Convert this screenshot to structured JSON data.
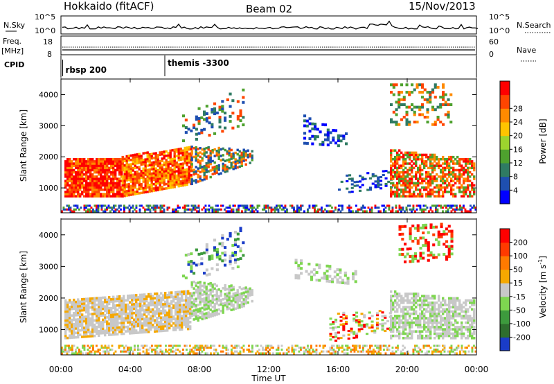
{
  "header": {
    "station": "Hokkaido (fitACF)",
    "beam": "Beam 02",
    "date": "15/Nov/2013"
  },
  "strip": {
    "nsky_label": "N.Sky",
    "nsearch_label": "N.Search",
    "freq_label": "Freq.",
    "freq_unit": "[MHz]",
    "nave_label": "Nave",
    "cpid_label": "CPID",
    "left_ticks_top": [
      "10^5",
      "10^0"
    ],
    "right_ticks_top": [
      "10^5",
      "10^0"
    ],
    "left_ticks_freq": [
      "18",
      "8"
    ],
    "right_ticks_nave": [
      "60",
      "0"
    ],
    "cpid_modes": [
      {
        "label": "rbsp 200",
        "start_hour": 0.1
      },
      {
        "label": "themis -3300",
        "start_hour": 6.0
      }
    ]
  },
  "chart_data": [
    {
      "type": "heatmap",
      "name": "power",
      "ylabel": "Slant Range [km]",
      "xlabel": "",
      "xlim": [
        0,
        24
      ],
      "ylim": [
        200,
        4500
      ],
      "yticks": [
        "1000",
        "2000",
        "3000",
        "4000"
      ],
      "colorbar_label": "Power [dB]",
      "colorbar_ticks": [
        "4",
        "8",
        "12",
        "16",
        "20",
        "24",
        "28"
      ],
      "colorbar_colors": [
        "#0000ff",
        "#1e4fb0",
        "#2f7b63",
        "#4ea12e",
        "#9dd42e",
        "#ffc400",
        "#ff8a00",
        "#ff4500",
        "#ff0000"
      ]
    },
    {
      "type": "heatmap",
      "name": "velocity",
      "ylabel": "Slant Range [km]",
      "xlabel": "Time UT",
      "xlim": [
        0,
        24
      ],
      "ylim": [
        200,
        4500
      ],
      "yticks": [
        "1000",
        "2000",
        "3000",
        "4000"
      ],
      "xticks": [
        "00:00",
        "04:00",
        "08:00",
        "12:00",
        "16:00",
        "20:00",
        "00:00"
      ],
      "colorbar_label": "Velocity [m s",
      "colorbar_label_sup": "-1",
      "colorbar_label_end": "]",
      "colorbar_ticks": [
        "200",
        "100",
        "50",
        "15",
        "-15",
        "-50",
        "-100",
        "-200"
      ],
      "colorbar_colors": [
        "#1a3cc8",
        "#2e6e2e",
        "#3d9a3d",
        "#7ed650",
        "#c8c8c8",
        "#f5a800",
        "#ff7a00",
        "#ff3a00",
        "#ff0000"
      ]
    }
  ]
}
